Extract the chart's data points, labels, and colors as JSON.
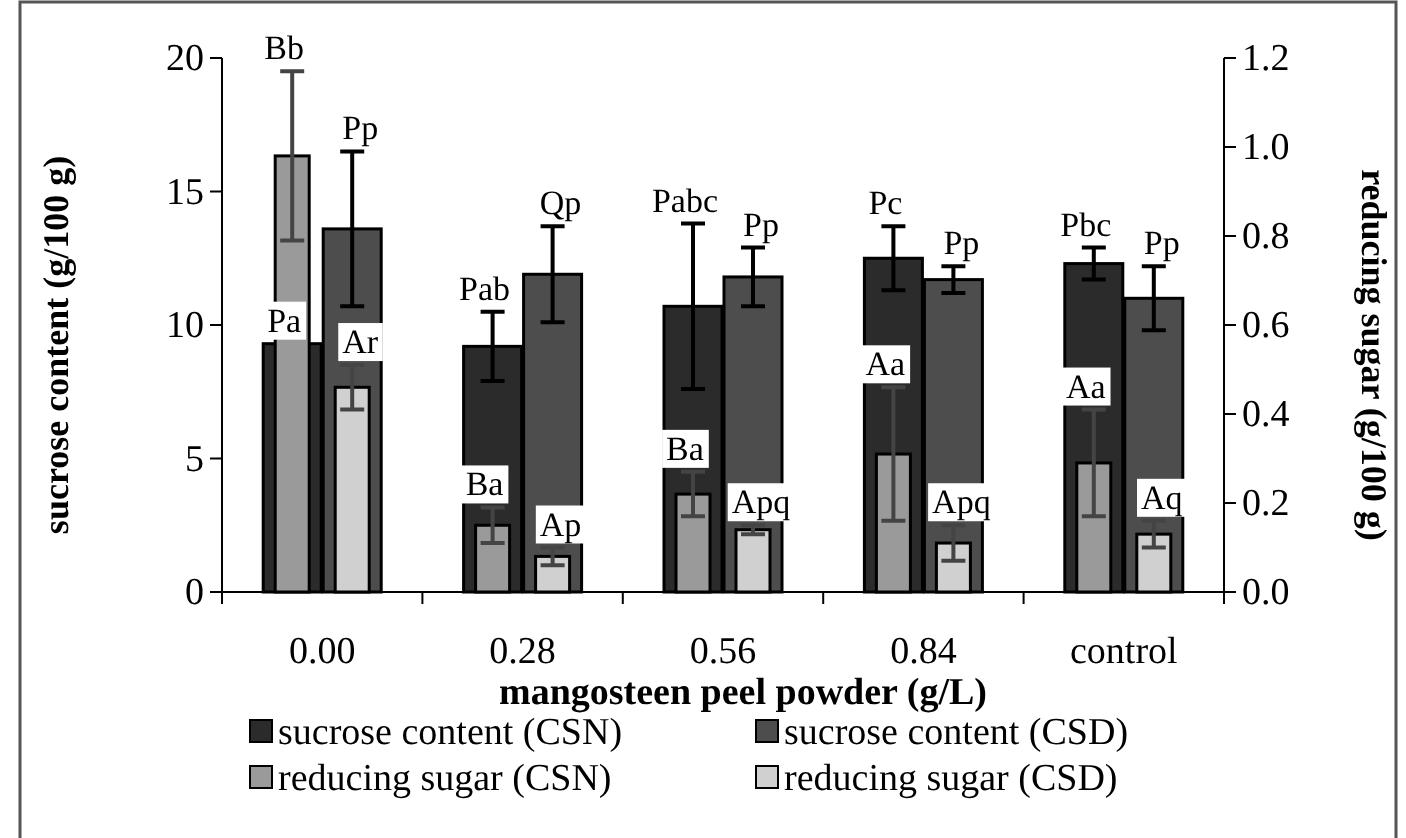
{
  "chart_data": {
    "type": "bar",
    "xlabel": "mangosteen peel powder (g/L)",
    "ylabel": "sucrose content (g/100 g)",
    "y2label": "reducing sugar (g/100 g)",
    "categories": [
      "0.00",
      "0.28",
      "0.56",
      "0.84",
      "control"
    ],
    "series": [
      {
        "name": "sucrose content (CSN)",
        "color": "#2b2b2b",
        "values": [
          9.3,
          9.2,
          10.7,
          12.5,
          12.3
        ],
        "errors": [
          null,
          1.3,
          3.1,
          1.2,
          0.6
        ],
        "value_labels": [
          "Pa",
          "Pab",
          "Pabc",
          "Pc",
          "Pbc"
        ]
      },
      {
        "name": "sucrose content (CSD)",
        "color": "#4d4d4d",
        "values": [
          13.6,
          11.9,
          11.8,
          11.7,
          11.0
        ],
        "errors": [
          2.9,
          1.8,
          1.1,
          0.5,
          1.2
        ],
        "value_labels": [
          "Pp",
          "Qp",
          "Pp",
          "Pp",
          "Pp"
        ]
      },
      {
        "name": "reducing sugar (CSN)",
        "color": "#9a9a9a",
        "axis": "y2",
        "values": [
          0.98,
          0.15,
          0.22,
          0.31,
          0.29
        ],
        "errors": [
          0.19,
          0.04,
          0.05,
          0.15,
          0.12
        ],
        "value_labels": [
          "Bb",
          "Ba",
          "Ba",
          "Aa",
          "Aa"
        ]
      },
      {
        "name": "reducing sugar (CSD)",
        "color": "#d0d0d0",
        "axis": "y2",
        "values": [
          0.46,
          0.08,
          0.14,
          0.11,
          0.13
        ],
        "errors": [
          0.05,
          0.02,
          0.01,
          0.04,
          0.03
        ],
        "value_labels": [
          "Ar",
          "Ap",
          "Apq",
          "Apq",
          "Aq"
        ]
      }
    ],
    "ylim": [
      0,
      20
    ],
    "yticks": [
      0,
      5,
      10,
      15,
      20
    ],
    "y2lim": [
      0,
      1.2
    ],
    "y2ticks": [
      {
        "value": 0,
        "label": "0.0"
      },
      {
        "value": 0.2,
        "label": "0.2"
      },
      {
        "value": 0.4,
        "label": "0.4"
      },
      {
        "value": 0.6,
        "label": "0.6"
      },
      {
        "value": 0.8,
        "label": "0.8"
      },
      {
        "value": 1,
        "label": "1.0"
      },
      {
        "value": 1.2,
        "label": "1.2"
      }
    ],
    "legend": "bottom",
    "grid": false
  }
}
